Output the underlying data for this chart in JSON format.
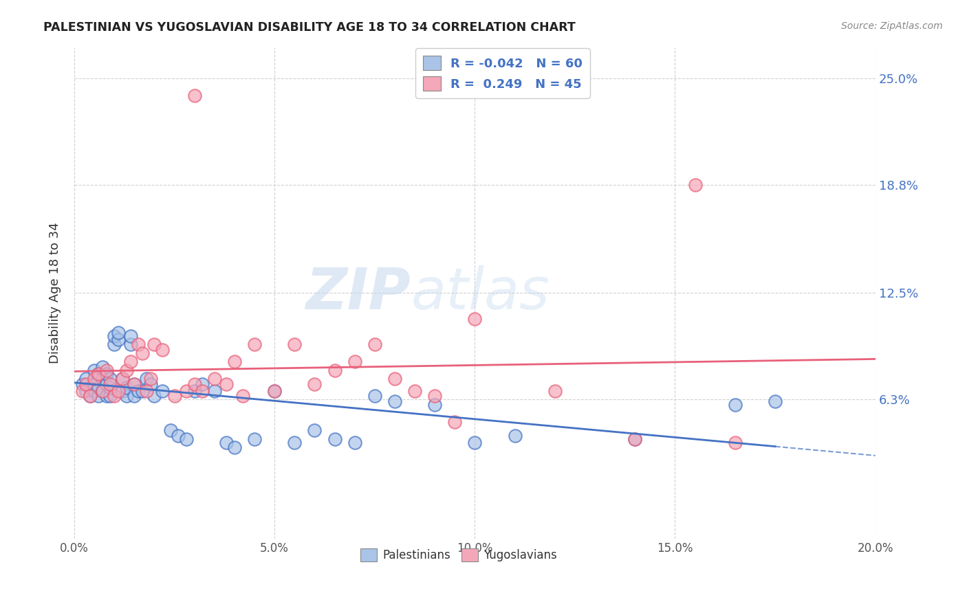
{
  "title": "PALESTINIAN VS YUGOSLAVIAN DISABILITY AGE 18 TO 34 CORRELATION CHART",
  "source": "Source: ZipAtlas.com",
  "ylabel": "Disability Age 18 to 34",
  "xlim": [
    0.0,
    0.2
  ],
  "ylim": [
    -0.018,
    0.268
  ],
  "ytick_labels": [
    "6.3%",
    "12.5%",
    "18.8%",
    "25.0%"
  ],
  "ytick_values": [
    0.063,
    0.125,
    0.188,
    0.25
  ],
  "xtick_labels": [
    "0.0%",
    "5.0%",
    "10.0%",
    "15.0%",
    "20.0%"
  ],
  "xtick_values": [
    0.0,
    0.05,
    0.1,
    0.15,
    0.2
  ],
  "palestinian_R": -0.042,
  "palestinian_N": 60,
  "yugoslavian_R": 0.249,
  "yugoslavian_N": 45,
  "palestinian_color": "#aac4e8",
  "yugoslavian_color": "#f4a7b9",
  "palestinian_line_color": "#4472c4",
  "yugoslavian_line_color": "#e8607a",
  "legend_label_1": "Palestinians",
  "legend_label_2": "Yugoslavians",
  "watermark": "ZIPatlas",
  "palestinian_x": [
    0.002,
    0.003,
    0.003,
    0.004,
    0.004,
    0.005,
    0.005,
    0.005,
    0.006,
    0.006,
    0.006,
    0.007,
    0.007,
    0.007,
    0.008,
    0.008,
    0.008,
    0.009,
    0.009,
    0.009,
    0.01,
    0.01,
    0.011,
    0.011,
    0.012,
    0.012,
    0.013,
    0.013,
    0.014,
    0.014,
    0.015,
    0.015,
    0.016,
    0.017,
    0.018,
    0.019,
    0.02,
    0.022,
    0.024,
    0.026,
    0.028,
    0.03,
    0.032,
    0.035,
    0.038,
    0.04,
    0.045,
    0.05,
    0.055,
    0.06,
    0.065,
    0.07,
    0.075,
    0.08,
    0.09,
    0.1,
    0.11,
    0.14,
    0.165,
    0.175
  ],
  "palestinian_y": [
    0.072,
    0.068,
    0.075,
    0.065,
    0.07,
    0.068,
    0.072,
    0.08,
    0.065,
    0.07,
    0.078,
    0.068,
    0.075,
    0.082,
    0.065,
    0.072,
    0.078,
    0.065,
    0.07,
    0.075,
    0.095,
    0.1,
    0.098,
    0.102,
    0.068,
    0.075,
    0.065,
    0.07,
    0.095,
    0.1,
    0.065,
    0.072,
    0.068,
    0.068,
    0.075,
    0.072,
    0.065,
    0.068,
    0.045,
    0.042,
    0.04,
    0.068,
    0.072,
    0.068,
    0.038,
    0.035,
    0.04,
    0.068,
    0.038,
    0.045,
    0.04,
    0.038,
    0.065,
    0.062,
    0.06,
    0.038,
    0.042,
    0.04,
    0.06,
    0.062
  ],
  "yugoslavian_x": [
    0.002,
    0.003,
    0.004,
    0.005,
    0.006,
    0.007,
    0.008,
    0.009,
    0.01,
    0.011,
    0.012,
    0.013,
    0.014,
    0.015,
    0.016,
    0.017,
    0.018,
    0.019,
    0.02,
    0.022,
    0.025,
    0.028,
    0.03,
    0.032,
    0.035,
    0.038,
    0.04,
    0.042,
    0.045,
    0.05,
    0.055,
    0.06,
    0.065,
    0.07,
    0.075,
    0.08,
    0.085,
    0.09,
    0.095,
    0.1,
    0.12,
    0.14,
    0.155,
    0.165,
    0.03
  ],
  "yugoslavian_y": [
    0.068,
    0.072,
    0.065,
    0.075,
    0.078,
    0.068,
    0.08,
    0.072,
    0.065,
    0.068,
    0.075,
    0.08,
    0.085,
    0.072,
    0.095,
    0.09,
    0.068,
    0.075,
    0.095,
    0.092,
    0.065,
    0.068,
    0.072,
    0.068,
    0.075,
    0.072,
    0.085,
    0.065,
    0.095,
    0.068,
    0.095,
    0.072,
    0.08,
    0.085,
    0.095,
    0.075,
    0.068,
    0.065,
    0.05,
    0.11,
    0.068,
    0.04,
    0.188,
    0.038,
    0.24
  ]
}
